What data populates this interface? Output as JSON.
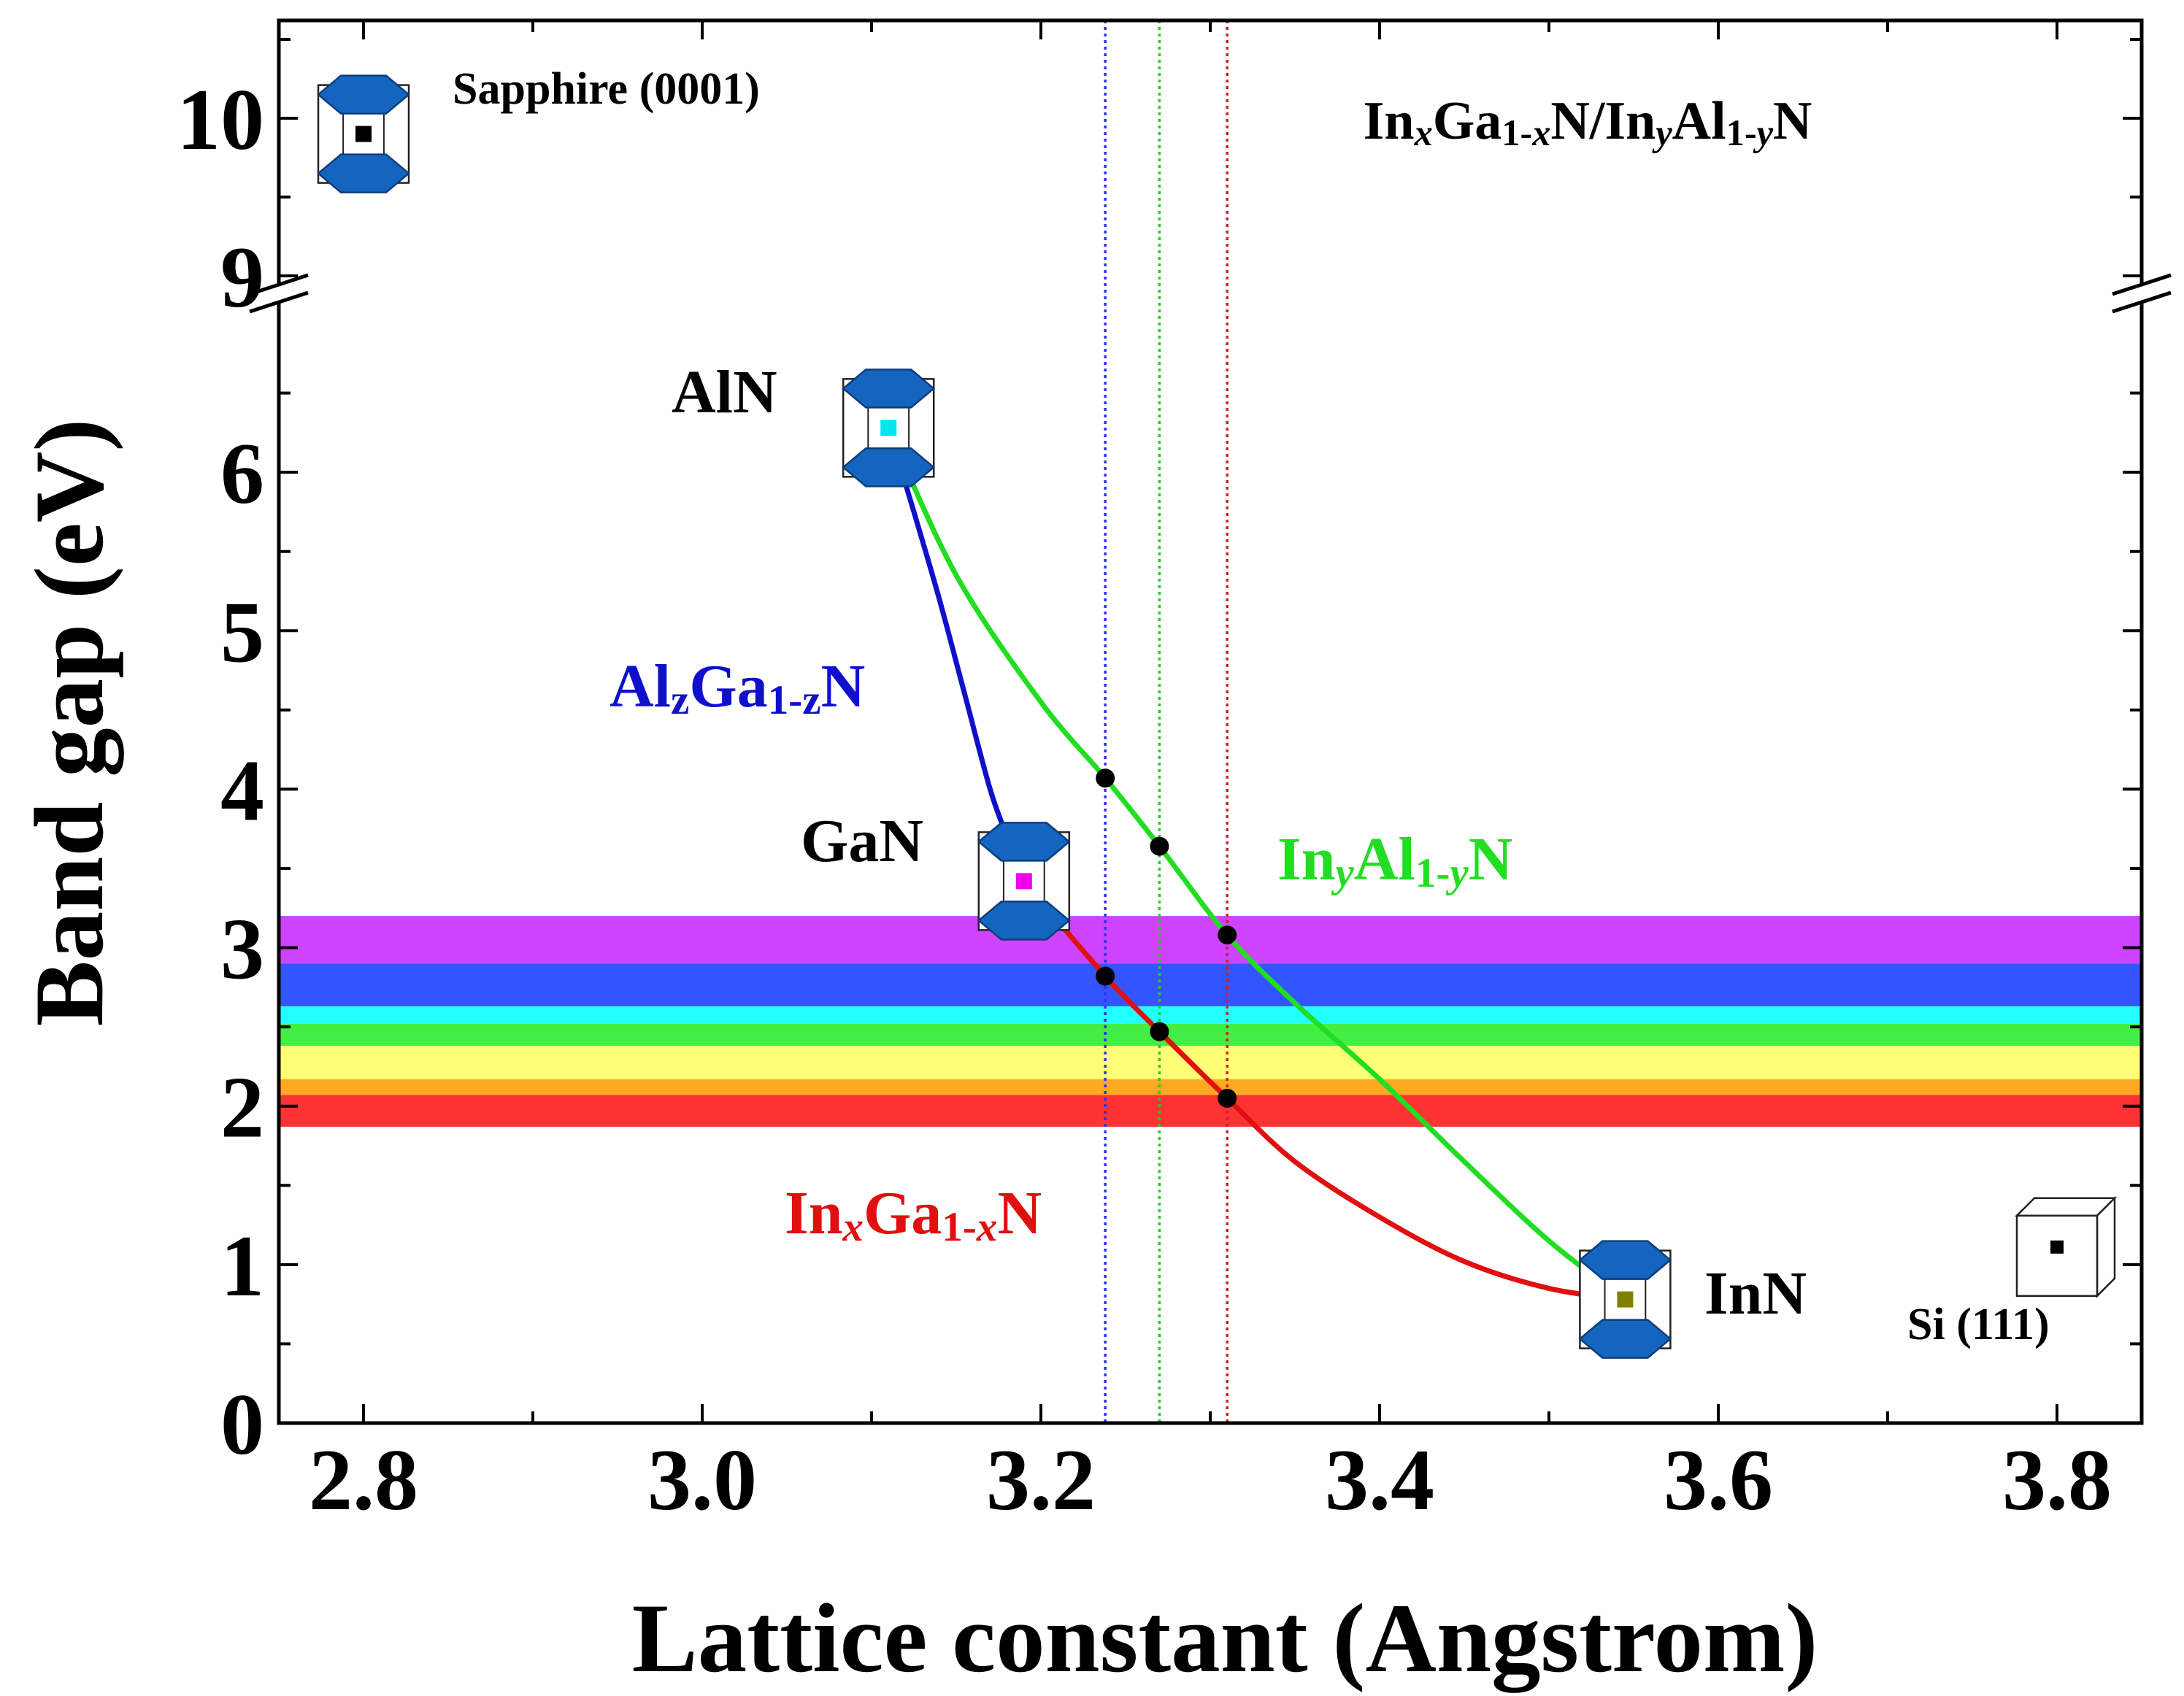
{
  "chart_data": {
    "type": "line",
    "xlabel": "Lattice constant (Angstrom)",
    "ylabel": "Band gap (eV)",
    "xlim": [
      2.75,
      3.85
    ],
    "xticks": [
      "2.8",
      "3.0",
      "3.2",
      "3.4",
      "3.6",
      "3.8"
    ],
    "xtick_values": [
      2.8,
      3.0,
      3.2,
      3.4,
      3.6,
      3.8
    ],
    "ylim": [
      0,
      10.5
    ],
    "yaxis_break": [
      6.8,
      9.0
    ],
    "yticks": [
      "0",
      "1",
      "2",
      "3",
      "4",
      "5",
      "6",
      "9",
      "10"
    ],
    "ytick_values": [
      0,
      1,
      2,
      3,
      4,
      5,
      6,
      9,
      10
    ],
    "grid": false,
    "header_label": {
      "parts": [
        {
          "t": "In",
          "i": false,
          "sub": false
        },
        {
          "t": "x",
          "i": true,
          "sub": true
        },
        {
          "t": "Ga",
          "i": false,
          "sub": false
        },
        {
          "t": "1-",
          "i": false,
          "sub": true
        },
        {
          "t": "x",
          "i": true,
          "sub": true
        },
        {
          "t": "N/In",
          "i": false,
          "sub": false
        },
        {
          "t": "y",
          "i": true,
          "sub": true
        },
        {
          "t": "Al",
          "i": false,
          "sub": false
        },
        {
          "t": "1-",
          "i": false,
          "sub": true
        },
        {
          "t": "y",
          "i": true,
          "sub": true
        },
        {
          "t": "N",
          "i": false,
          "sub": false
        }
      ]
    },
    "materials": [
      {
        "name": "AlN",
        "a": 3.11,
        "eg": 6.28,
        "marker_color": "#00e5ee"
      },
      {
        "name": "GaN",
        "a": 3.19,
        "eg": 3.42,
        "marker_color": "#ee00ee"
      },
      {
        "name": "InN",
        "a": 3.545,
        "eg": 0.78,
        "marker_color": "#808000"
      }
    ],
    "substrates": [
      {
        "name": "Sapphire (0001)",
        "a": 2.8,
        "eg": 9.9,
        "shape": "hexagonal-prism"
      },
      {
        "name": "Si (111)",
        "a": 3.8,
        "eg": 1.12,
        "shape": "cube"
      }
    ],
    "series": [
      {
        "name": "AlzGa1-zN",
        "color": "#1010cc",
        "label_parts": [
          {
            "t": "Al",
            "i": false,
            "sub": false
          },
          {
            "t": "z",
            "i": false,
            "sub": true
          },
          {
            "t": "Ga",
            "i": false,
            "sub": false
          },
          {
            "t": "1-z",
            "i": false,
            "sub": true
          },
          {
            "t": "N",
            "i": false,
            "sub": false
          }
        ],
        "x": [
          3.11,
          3.125,
          3.14,
          3.155,
          3.17,
          3.18,
          3.19
        ],
        "y": [
          6.28,
          5.75,
          5.2,
          4.6,
          4.0,
          3.7,
          3.42
        ]
      },
      {
        "name": "InyAl1-yN",
        "color": "#22dd22",
        "label_parts": [
          {
            "t": "In",
            "i": false,
            "sub": false
          },
          {
            "t": "y",
            "i": true,
            "sub": true
          },
          {
            "t": "Al",
            "i": false,
            "sub": false
          },
          {
            "t": "1-",
            "i": false,
            "sub": true
          },
          {
            "t": "y",
            "i": true,
            "sub": true
          },
          {
            "t": "N",
            "i": false,
            "sub": false
          }
        ],
        "x": [
          3.11,
          3.15,
          3.2,
          3.238,
          3.27,
          3.31,
          3.35,
          3.4,
          3.45,
          3.5,
          3.545
        ],
        "y": [
          6.28,
          5.35,
          4.55,
          4.07,
          3.64,
          3.08,
          2.65,
          2.17,
          1.65,
          1.15,
          0.78
        ]
      },
      {
        "name": "InxGa1-xN",
        "color": "#e01010",
        "label_parts": [
          {
            "t": "In",
            "i": false,
            "sub": false
          },
          {
            "t": "x",
            "i": true,
            "sub": true
          },
          {
            "t": "Ga",
            "i": false,
            "sub": false
          },
          {
            "t": "1-",
            "i": false,
            "sub": true
          },
          {
            "t": "x",
            "i": true,
            "sub": true
          },
          {
            "t": "N",
            "i": false,
            "sub": false
          }
        ],
        "x": [
          3.19,
          3.238,
          3.27,
          3.31,
          3.35,
          3.4,
          3.45,
          3.5,
          3.545
        ],
        "y": [
          3.42,
          2.82,
          2.47,
          2.05,
          1.65,
          1.3,
          1.02,
          0.85,
          0.78
        ]
      }
    ],
    "points": [
      {
        "x": 3.238,
        "y": 4.07
      },
      {
        "x": 3.27,
        "y": 3.64
      },
      {
        "x": 3.31,
        "y": 3.08
      },
      {
        "x": 3.238,
        "y": 2.82
      },
      {
        "x": 3.27,
        "y": 2.47
      },
      {
        "x": 3.31,
        "y": 2.05
      }
    ],
    "vlines": [
      {
        "x": 3.238,
        "color": "#3030ee"
      },
      {
        "x": 3.27,
        "color": "#22cc22"
      },
      {
        "x": 3.31,
        "color": "#cc2222"
      }
    ],
    "color_bands": [
      {
        "y0": 2.9,
        "y1": 3.2,
        "color": "#cc44ff"
      },
      {
        "y0": 2.63,
        "y1": 2.9,
        "color": "#3355ff"
      },
      {
        "y0": 2.52,
        "y1": 2.63,
        "color": "#22ffff"
      },
      {
        "y0": 2.38,
        "y1": 2.52,
        "color": "#44ee44"
      },
      {
        "y0": 2.17,
        "y1": 2.38,
        "color": "#ffff77"
      },
      {
        "y0": 2.07,
        "y1": 2.17,
        "color": "#ffaa22"
      },
      {
        "y0": 1.87,
        "y1": 2.07,
        "color": "#ff3333"
      }
    ]
  }
}
